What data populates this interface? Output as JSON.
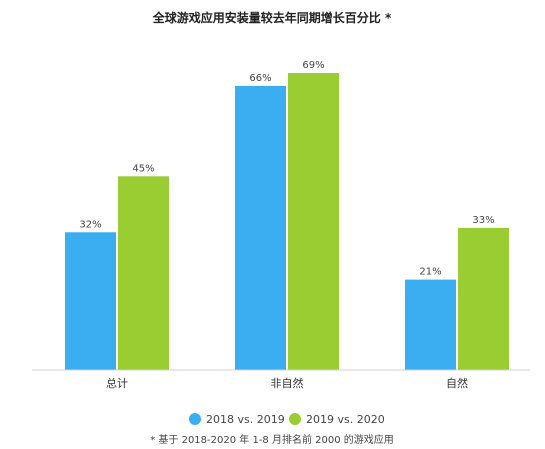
{
  "chart_data": {
    "type": "bar",
    "title": "全球游戏应用安装量较去年同期增长百分比 *",
    "categories": [
      "总计",
      "非自然",
      "自然"
    ],
    "series": [
      {
        "name": "2018 vs. 2019",
        "values": [
          32,
          66,
          21
        ],
        "labels": [
          "32%",
          "66%",
          "21%"
        ],
        "color": "#3aaef0"
      },
      {
        "name": "2019 vs. 2020",
        "values": [
          45,
          69,
          33
        ],
        "labels": [
          "45%",
          "69%",
          "33%"
        ],
        "color": "#9acd32"
      }
    ],
    "ylim": [
      0,
      69
    ],
    "grid": false,
    "legend_position": "bottom",
    "footnote": "* 基于 2018-2020 年 1-8 月排名前 2000 的游戏应用",
    "xlabel": "",
    "ylabel": ""
  }
}
